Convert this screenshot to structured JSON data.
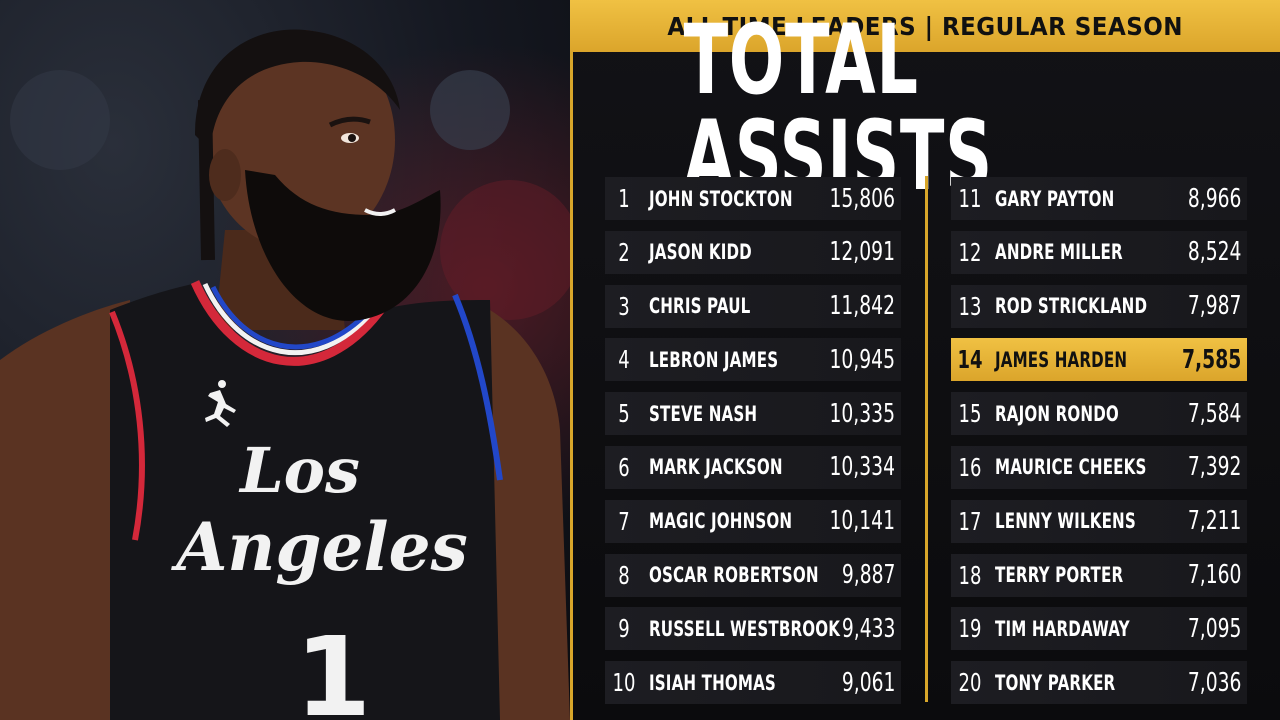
{
  "header": {
    "banner": "ALL-TIME LEADERS | REGULAR SEASON",
    "title": "TOTAL ASSISTS"
  },
  "photo": {
    "jersey_text_1": "Los",
    "jersey_text_2": "Angeles",
    "jersey_number": "1"
  },
  "colors": {
    "accent_gold": "#dba52b",
    "background": "#0c0c0e",
    "row_background": "#1b1b1f",
    "jersey_red": "#d4283a",
    "jersey_blue": "#2247c8"
  },
  "leaders_left": [
    {
      "rank": "1",
      "name": "JOHN STOCKTON",
      "value": "15,806"
    },
    {
      "rank": "2",
      "name": "JASON KIDD",
      "value": "12,091"
    },
    {
      "rank": "3",
      "name": "CHRIS PAUL",
      "value": "11,842"
    },
    {
      "rank": "4",
      "name": "LEBRON JAMES",
      "value": "10,945"
    },
    {
      "rank": "5",
      "name": "STEVE NASH",
      "value": "10,335"
    },
    {
      "rank": "6",
      "name": "MARK JACKSON",
      "value": "10,334"
    },
    {
      "rank": "7",
      "name": "MAGIC JOHNSON",
      "value": "10,141"
    },
    {
      "rank": "8",
      "name": "OSCAR ROBERTSON",
      "value": "9,887"
    },
    {
      "rank": "9",
      "name": "RUSSELL WESTBROOK",
      "value": "9,433"
    },
    {
      "rank": "10",
      "name": "ISIAH THOMAS",
      "value": "9,061"
    }
  ],
  "leaders_right": [
    {
      "rank": "11",
      "name": "GARY PAYTON",
      "value": "8,966"
    },
    {
      "rank": "12",
      "name": "ANDRE MILLER",
      "value": "8,524"
    },
    {
      "rank": "13",
      "name": "ROD STRICKLAND",
      "value": "7,987"
    },
    {
      "rank": "14",
      "name": "JAMES HARDEN",
      "value": "7,585",
      "highlight": true
    },
    {
      "rank": "15",
      "name": "RAJON RONDO",
      "value": "7,584"
    },
    {
      "rank": "16",
      "name": "MAURICE CHEEKS",
      "value": "7,392"
    },
    {
      "rank": "17",
      "name": "LENNY WILKENS",
      "value": "7,211"
    },
    {
      "rank": "18",
      "name": "TERRY PORTER",
      "value": "7,160"
    },
    {
      "rank": "19",
      "name": "TIM HARDAWAY",
      "value": "7,095"
    },
    {
      "rank": "20",
      "name": "TONY PARKER",
      "value": "7,036"
    }
  ]
}
